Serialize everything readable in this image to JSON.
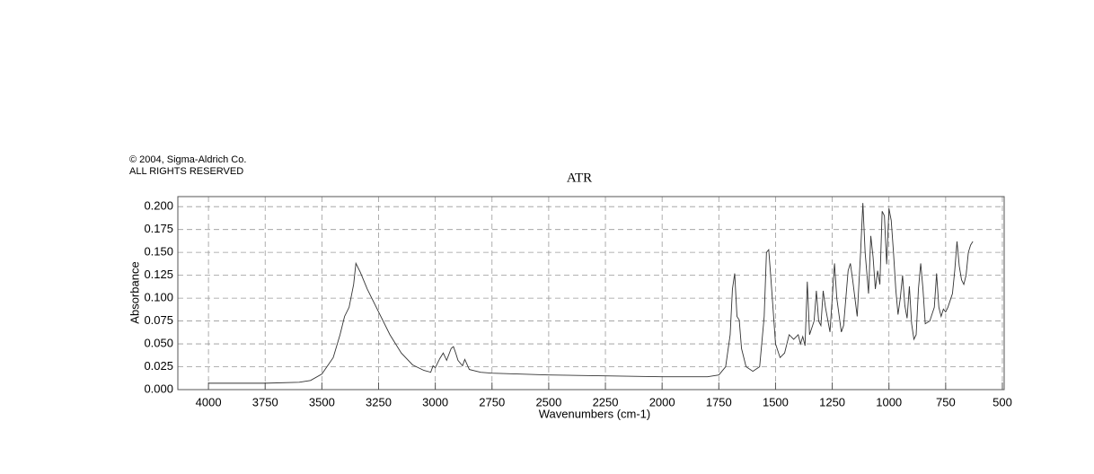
{
  "chart_data": {
    "type": "line",
    "title": "ATR",
    "copyright": [
      "© 2004, Sigma-Aldrich Co.",
      "ALL RIGHTS RESERVED"
    ],
    "xlabel": "Wavenumbers (cm-1)",
    "ylabel": "Absorbance",
    "color": "#333333",
    "grid": true,
    "xlim": [
      4135,
      492
    ],
    "ylim": [
      0,
      0.211
    ],
    "xticks": [
      4000,
      3750,
      3500,
      3250,
      3000,
      2750,
      2500,
      2250,
      2000,
      1750,
      1500,
      1250,
      1000,
      750,
      500
    ],
    "yticks": [
      {
        "value": 0,
        "label": "0.000"
      },
      {
        "value": 0.025,
        "label": "0.025"
      },
      {
        "value": 0.05,
        "label": "0.050"
      },
      {
        "value": 0.075,
        "label": "0.075"
      },
      {
        "value": 0.1,
        "label": "0.100"
      },
      {
        "value": 0.125,
        "label": "0.125"
      },
      {
        "value": 0.15,
        "label": "0.150"
      },
      {
        "value": 0.175,
        "label": "0.175"
      },
      {
        "value": 0.2,
        "label": "0.200"
      }
    ],
    "x": [
      4000,
      3750,
      3600,
      3550,
      3500,
      3450,
      3420,
      3400,
      3380,
      3360,
      3350,
      3330,
      3300,
      3250,
      3200,
      3150,
      3100,
      3050,
      3020,
      3010,
      3000,
      2980,
      2965,
      2950,
      2930,
      2920,
      2910,
      2900,
      2880,
      2870,
      2850,
      2800,
      2750,
      2500,
      2250,
      2000,
      1800,
      1750,
      1720,
      1700,
      1690,
      1680,
      1670,
      1660,
      1650,
      1630,
      1600,
      1570,
      1550,
      1540,
      1530,
      1520,
      1500,
      1480,
      1460,
      1440,
      1420,
      1400,
      1390,
      1380,
      1370,
      1360,
      1350,
      1330,
      1320,
      1310,
      1300,
      1290,
      1280,
      1260,
      1250,
      1240,
      1230,
      1210,
      1200,
      1180,
      1170,
      1160,
      1140,
      1125,
      1115,
      1105,
      1090,
      1080,
      1070,
      1060,
      1050,
      1040,
      1030,
      1020,
      1010,
      1000,
      990,
      980,
      970,
      960,
      950,
      940,
      930,
      920,
      910,
      900,
      890,
      880,
      870,
      860,
      850,
      840,
      820,
      800,
      790,
      780,
      770,
      760,
      750,
      740,
      720,
      710,
      700,
      690,
      680,
      670,
      660,
      650,
      640,
      630
    ],
    "values": [
      0.007,
      0.007,
      0.008,
      0.01,
      0.017,
      0.035,
      0.06,
      0.08,
      0.09,
      0.115,
      0.138,
      0.128,
      0.11,
      0.085,
      0.06,
      0.04,
      0.027,
      0.021,
      0.019,
      0.026,
      0.024,
      0.034,
      0.04,
      0.032,
      0.045,
      0.047,
      0.04,
      0.032,
      0.026,
      0.033,
      0.022,
      0.019,
      0.018,
      0.016,
      0.015,
      0.014,
      0.014,
      0.016,
      0.025,
      0.06,
      0.11,
      0.127,
      0.08,
      0.076,
      0.045,
      0.025,
      0.02,
      0.025,
      0.08,
      0.15,
      0.153,
      0.12,
      0.05,
      0.035,
      0.04,
      0.06,
      0.055,
      0.06,
      0.05,
      0.058,
      0.048,
      0.118,
      0.06,
      0.075,
      0.108,
      0.075,
      0.07,
      0.108,
      0.09,
      0.063,
      0.1,
      0.138,
      0.1,
      0.063,
      0.07,
      0.13,
      0.138,
      0.12,
      0.08,
      0.15,
      0.204,
      0.15,
      0.105,
      0.168,
      0.145,
      0.11,
      0.13,
      0.115,
      0.195,
      0.19,
      0.137,
      0.198,
      0.185,
      0.15,
      0.11,
      0.082,
      0.1,
      0.125,
      0.092,
      0.078,
      0.113,
      0.072,
      0.055,
      0.06,
      0.11,
      0.138,
      0.11,
      0.072,
      0.075,
      0.09,
      0.127,
      0.09,
      0.08,
      0.088,
      0.085,
      0.09,
      0.105,
      0.13,
      0.162,
      0.135,
      0.12,
      0.115,
      0.125,
      0.15,
      0.158,
      0.162
    ]
  }
}
